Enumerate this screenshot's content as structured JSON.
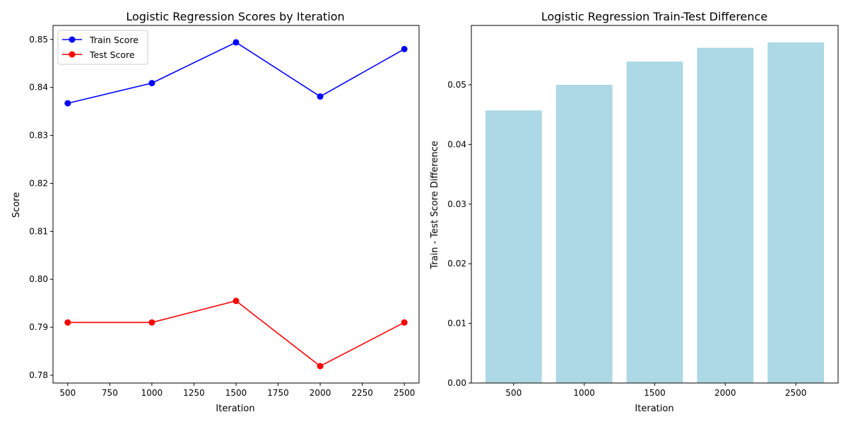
{
  "chart_data": [
    {
      "type": "line",
      "title": "Logistic Regression Scores by Iteration",
      "xlabel": "Iteration",
      "ylabel": "Score",
      "x": [
        500,
        1000,
        1500,
        2000,
        2500
      ],
      "xlim": [
        412.5,
        2587.5
      ],
      "ylim": [
        0.77838,
        0.85292
      ],
      "xticks": [
        500,
        750,
        1000,
        1250,
        1500,
        1750,
        2000,
        2250,
        2500
      ],
      "xtick_labels": [
        "500",
        "750",
        "1000",
        "1250",
        "1500",
        "1750",
        "2000",
        "2250",
        "2500"
      ],
      "yticks": [
        0.78,
        0.79,
        0.8,
        0.81,
        0.82,
        0.83,
        0.84,
        0.85
      ],
      "ytick_labels": [
        "0.78",
        "0.79",
        "0.80",
        "0.81",
        "0.82",
        "0.83",
        "0.84",
        "0.85"
      ],
      "grid": false,
      "legend_position": "top-left",
      "series": [
        {
          "name": "Train Score",
          "color": "#0000ff",
          "marker": "circle",
          "values": [
            0.8367,
            0.8409,
            0.8494,
            0.8381,
            0.848
          ]
        },
        {
          "name": "Test Score",
          "color": "#ff0000",
          "marker": "circle",
          "values": [
            0.791,
            0.791,
            0.7955,
            0.7819,
            0.791
          ]
        }
      ]
    },
    {
      "type": "bar",
      "title": "Logistic Regression Train-Test Difference",
      "xlabel": "Iteration",
      "ylabel": "Train - Test Score Difference",
      "categories": [
        "500",
        "1000",
        "1500",
        "2000",
        "2500"
      ],
      "values": [
        0.0457,
        0.05,
        0.0539,
        0.0562,
        0.0571
      ],
      "ylim": [
        0,
        0.05995
      ],
      "yticks": [
        0.0,
        0.01,
        0.02,
        0.03,
        0.04,
        0.05
      ],
      "ytick_labels": [
        "0.00",
        "0.01",
        "0.02",
        "0.03",
        "0.04",
        "0.05"
      ],
      "grid": false,
      "color": "#add8e6"
    }
  ]
}
